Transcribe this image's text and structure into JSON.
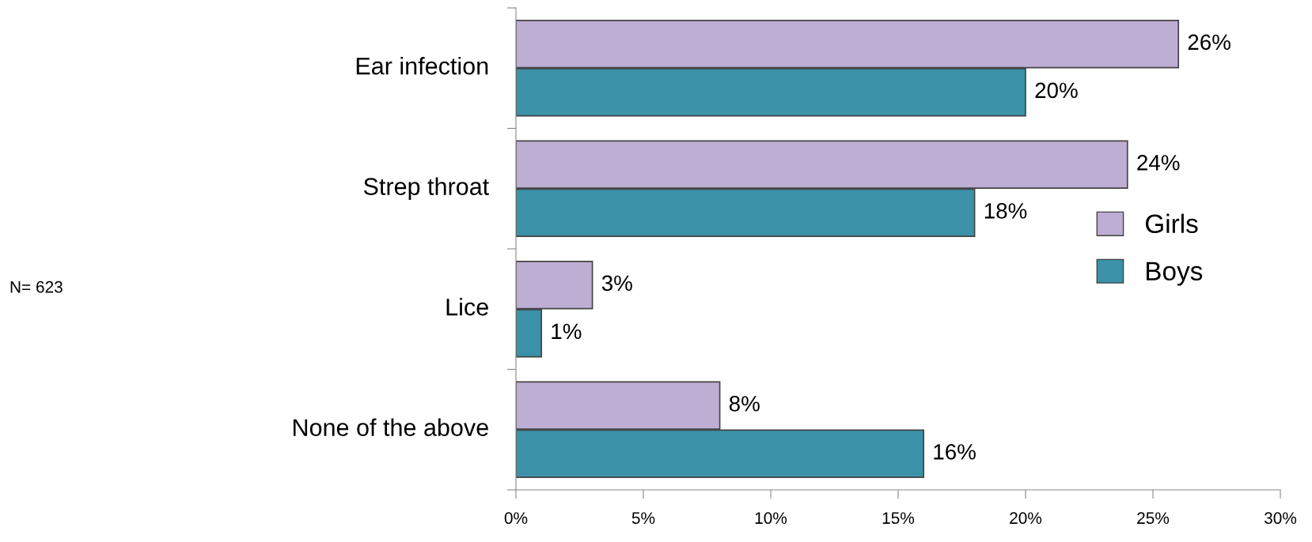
{
  "chart_data": {
    "type": "bar",
    "orientation": "horizontal",
    "categories": [
      "Ear infection",
      "Strep throat",
      "Lice",
      "None of the above"
    ],
    "series": [
      {
        "name": "Girls",
        "color": "#bdaed4",
        "values": [
          26,
          24,
          3,
          8
        ],
        "value_labels": [
          "26%",
          "24%",
          "3%",
          "8%"
        ]
      },
      {
        "name": "Boys",
        "color": "#3a91a8",
        "values": [
          20,
          18,
          1,
          16
        ],
        "value_labels": [
          "20%",
          "18%",
          "1%",
          "16%"
        ]
      }
    ],
    "xlim": [
      0,
      30
    ],
    "xticks": [
      {
        "value": 0,
        "label": "0%"
      },
      {
        "value": 5,
        "label": "5%"
      },
      {
        "value": 10,
        "label": "10%"
      },
      {
        "value": 15,
        "label": "15%"
      },
      {
        "value": 20,
        "label": "20%"
      },
      {
        "value": 25,
        "label": "25%"
      },
      {
        "value": 30,
        "label": "30%"
      }
    ],
    "grid": false,
    "legend": "right",
    "annotations": [
      "N= 623"
    ]
  }
}
